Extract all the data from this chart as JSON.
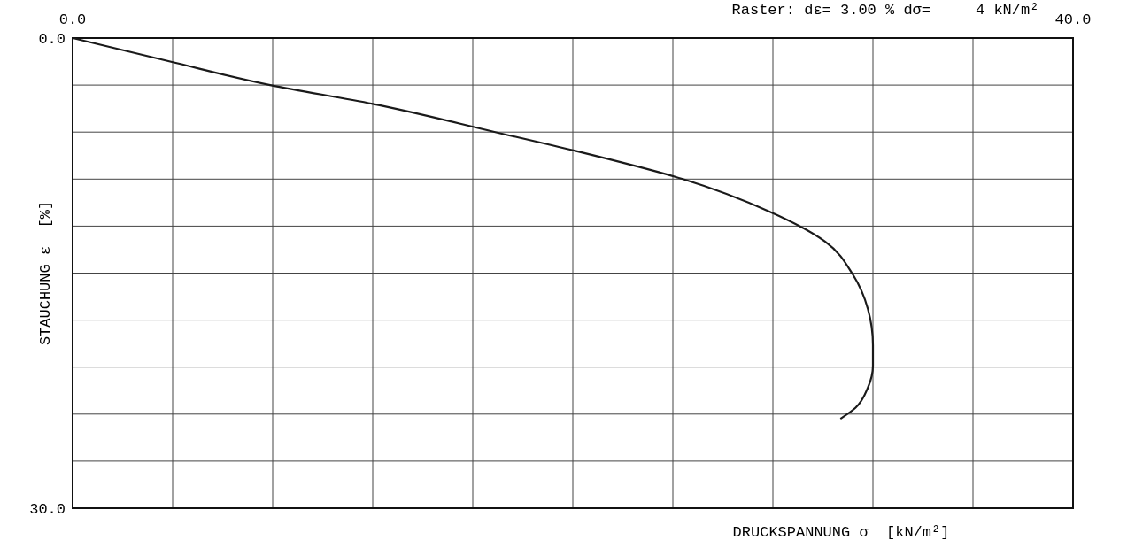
{
  "chart_data": {
    "type": "line",
    "title": "Raster: dε= 3.00 % dσ=     4 kN/m²",
    "xlabel": "DRUCKSPANNUNG σ  [kN/m²]",
    "ylabel": "STAUCHUNG ε  [%]",
    "x": [
      0,
      3.9,
      7.9,
      12.0,
      16.9,
      20.1,
      24.4,
      27.9,
      30.1,
      31.2,
      31.8,
      32.0,
      32.0,
      31.8,
      31.3,
      30.7
    ],
    "series": [
      {
        "color": "#1a1a1a",
        "values": [
          0,
          1.5,
          3.0,
          4.2,
          6.0,
          7.2,
          9.0,
          11.1,
          13.0,
          15.1,
          17.3,
          19.6,
          20.9,
          22.3,
          23.6,
          24.3
        ]
      }
    ],
    "xlim": [
      0,
      40
    ],
    "ylim": [
      30,
      0
    ],
    "xticks": [
      {
        "value": 0,
        "label": "0.0"
      },
      {
        "value": 4,
        "label": null
      },
      {
        "value": 8,
        "label": null
      },
      {
        "value": 12,
        "label": null
      },
      {
        "value": 16,
        "label": null
      },
      {
        "value": 20,
        "label": null
      },
      {
        "value": 24,
        "label": null
      },
      {
        "value": 28,
        "label": null
      },
      {
        "value": 32,
        "label": null
      },
      {
        "value": 36,
        "label": null
      },
      {
        "value": 40,
        "label": "40.0"
      }
    ],
    "yticks": [
      {
        "value": 0,
        "label": "0.0"
      },
      {
        "value": 3,
        "label": null
      },
      {
        "value": 6,
        "label": null
      },
      {
        "value": 9,
        "label": null
      },
      {
        "value": 12,
        "label": null
      },
      {
        "value": 15,
        "label": null
      },
      {
        "value": 18,
        "label": null
      },
      {
        "value": 21,
        "label": null
      },
      {
        "value": 24,
        "label": null
      },
      {
        "value": 27,
        "label": null
      },
      {
        "value": 30,
        "label": "30.0"
      }
    ],
    "grid": true,
    "marker": "none",
    "line_style": "solid"
  }
}
